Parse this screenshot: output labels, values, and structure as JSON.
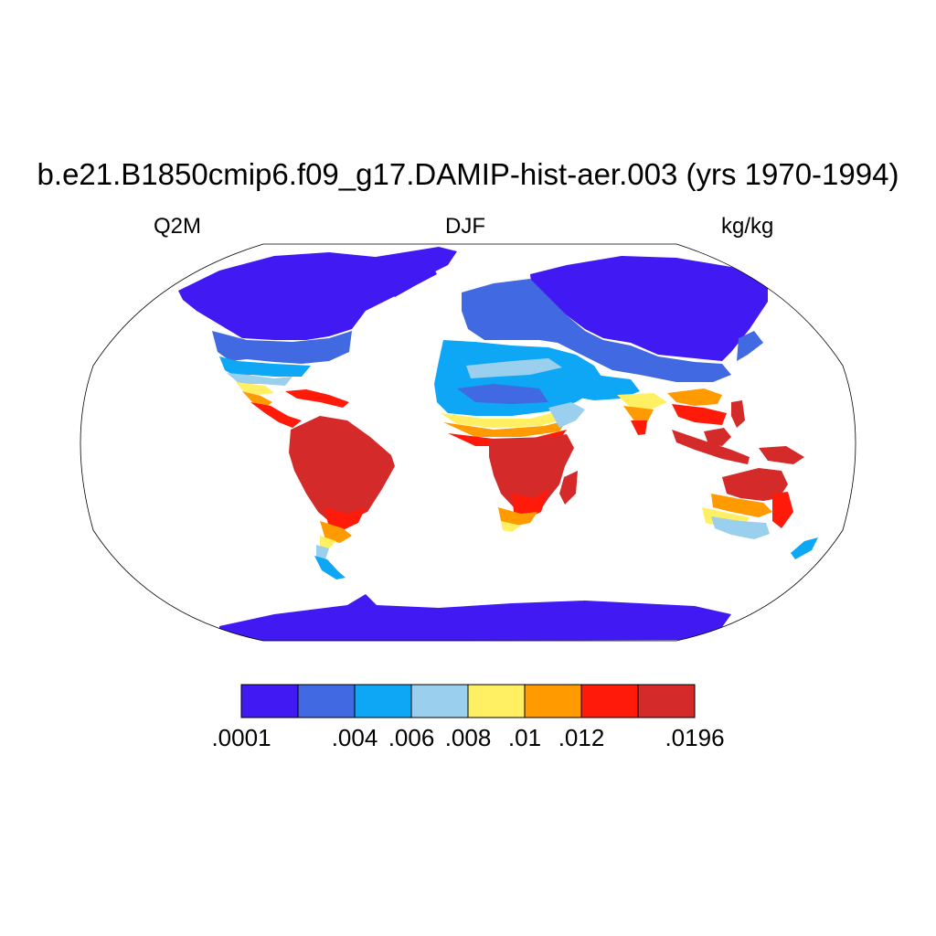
{
  "title": "b.e21.B1850cmip6.f09_g17.DAMIP-hist-aer.003 (yrs 1970-1994)",
  "left_string": "Q2M",
  "center_string": "DJF",
  "right_string": "kg/kg",
  "projection": "Robinson",
  "colorbar": {
    "colors": [
      "#4119f2",
      "#4169e1",
      "#0ea7f5",
      "#9bcfee",
      "#ffef63",
      "#ff9a00",
      "#ff1a0a",
      "#d42a2a"
    ],
    "labels": [
      ".0001",
      "",
      ".004",
      ".006",
      ".008",
      ".01",
      ".012",
      "",
      ".0196"
    ]
  },
  "colors": {
    "land_outline": "#000000",
    "ocean": "#ffffff"
  }
}
